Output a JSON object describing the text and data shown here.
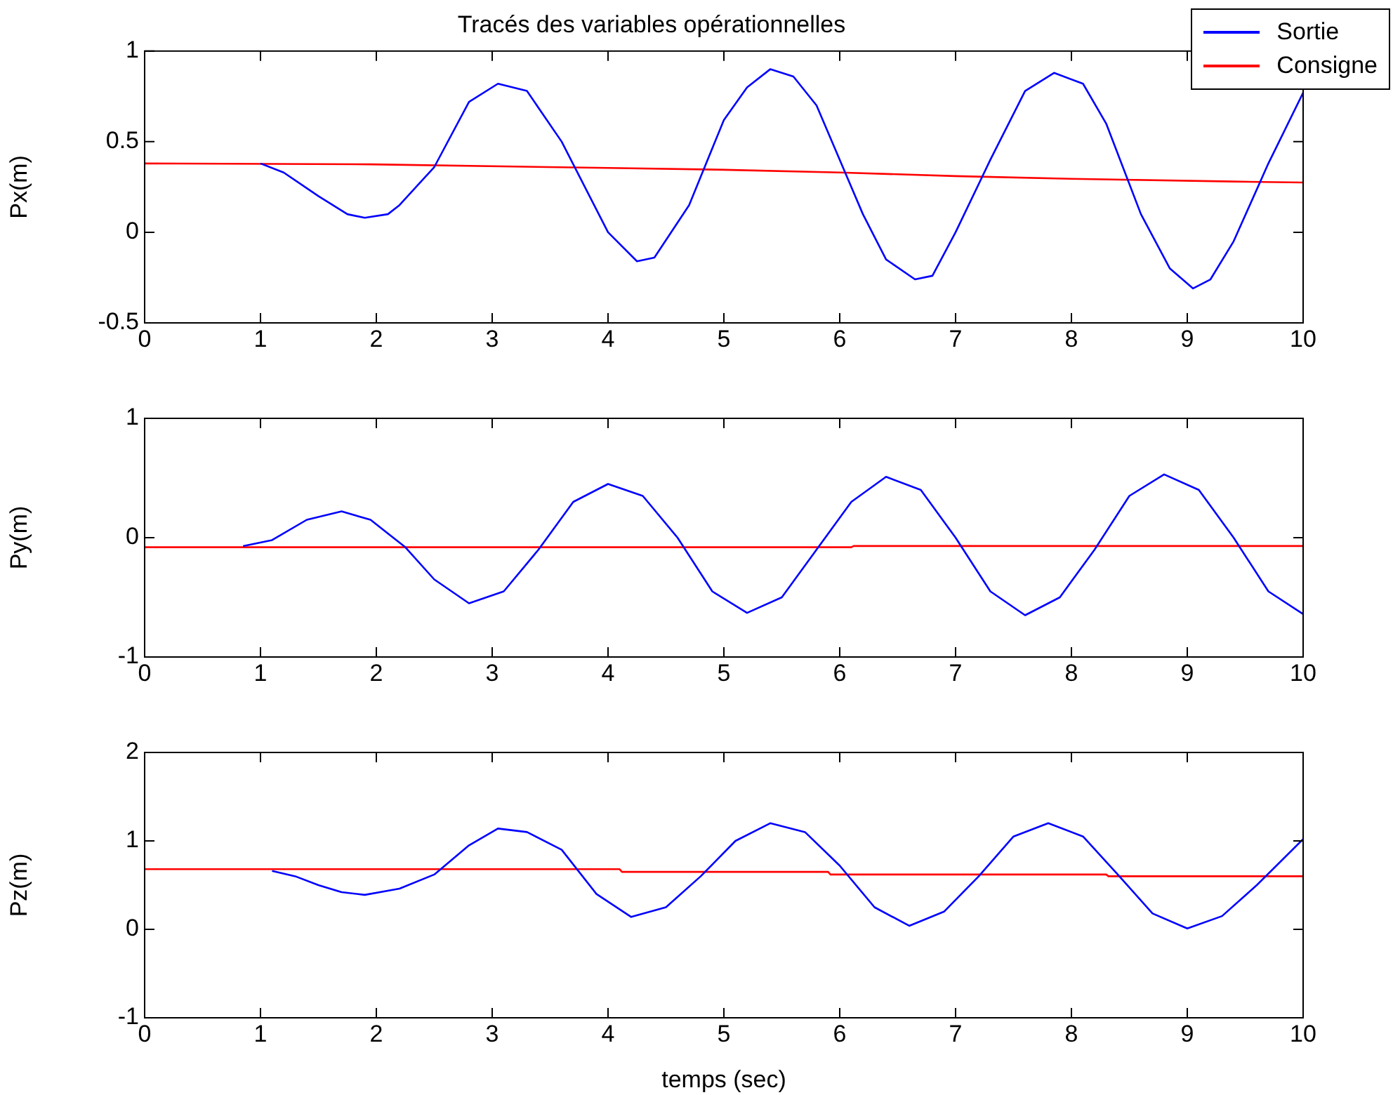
{
  "chart_data": [
    {
      "type": "line",
      "title": "Tracés des variables opérationnelles",
      "ylabel": "Px(m)",
      "xlim": [
        0,
        10
      ],
      "xticks": [
        0,
        1,
        2,
        3,
        4,
        5,
        6,
        7,
        8,
        9,
        10
      ],
      "ylim": [
        -0.5,
        1
      ],
      "yticks": [
        -0.5,
        0,
        0.5,
        1
      ],
      "grid": false,
      "legend": "top right",
      "marker": "none",
      "line_style": "solid",
      "series": [
        {
          "name": "Sortie",
          "color": "#0000ff",
          "x": [
            1,
            1.2,
            1.5,
            1.75,
            1.9,
            2.1,
            2.2,
            2.5,
            2.8,
            3.05,
            3.3,
            3.6,
            4,
            4.25,
            4.4,
            4.7,
            5,
            5.2,
            5.4,
            5.6,
            5.8,
            6.2,
            6.4,
            6.65,
            6.8,
            7,
            7.3,
            7.6,
            7.85,
            8.1,
            8.3,
            8.6,
            8.85,
            9.05,
            9.2,
            9.4,
            9.7,
            10
          ],
          "values": [
            0.38,
            0.33,
            0.2,
            0.1,
            0.08,
            0.1,
            0.15,
            0.36,
            0.72,
            0.82,
            0.78,
            0.5,
            0,
            -0.16,
            -0.14,
            0.15,
            0.62,
            0.8,
            0.9,
            0.86,
            0.7,
            0.1,
            -0.15,
            -0.26,
            -0.24,
            0,
            0.4,
            0.78,
            0.88,
            0.82,
            0.6,
            0.1,
            -0.2,
            -0.31,
            -0.26,
            -0.05,
            0.38,
            0.77
          ]
        },
        {
          "name": "Consigne",
          "color": "#ff0000",
          "x": [
            0,
            1.95,
            4,
            5,
            6,
            7,
            8,
            9.4,
            10
          ],
          "values": [
            0.38,
            0.375,
            0.355,
            0.345,
            0.33,
            0.31,
            0.295,
            0.28,
            0.275
          ]
        }
      ]
    },
    {
      "type": "line",
      "ylabel": "Py(m)",
      "xlim": [
        0,
        10
      ],
      "xticks": [
        0,
        1,
        2,
        3,
        4,
        5,
        6,
        7,
        8,
        9,
        10
      ],
      "ylim": [
        -1,
        1
      ],
      "yticks": [
        -1,
        0,
        1
      ],
      "grid": false,
      "marker": "none",
      "line_style": "solid",
      "series": [
        {
          "color": "#0000ff",
          "x": [
            0.85,
            1.1,
            1.4,
            1.7,
            1.95,
            2.25,
            2.5,
            2.8,
            3.1,
            3.4,
            3.7,
            4,
            4.3,
            4.6,
            4.9,
            5.2,
            5.5,
            5.8,
            6.1,
            6.4,
            6.7,
            7,
            7.3,
            7.6,
            7.9,
            8.2,
            8.5,
            8.8,
            9.1,
            9.4,
            9.7,
            10
          ],
          "values": [
            -0.07,
            -0.02,
            0.15,
            0.22,
            0.15,
            -0.08,
            -0.35,
            -0.55,
            -0.45,
            -0.1,
            0.3,
            0.45,
            0.35,
            0,
            -0.45,
            -0.63,
            -0.5,
            -0.1,
            0.3,
            0.51,
            0.4,
            0,
            -0.45,
            -0.65,
            -0.5,
            -0.1,
            0.35,
            0.53,
            0.4,
            0,
            -0.45,
            -0.64
          ]
        },
        {
          "color": "#ff0000",
          "x": [
            0,
            6.1,
            6.12,
            10
          ],
          "values": [
            -0.08,
            -0.08,
            -0.07,
            -0.07
          ]
        }
      ]
    },
    {
      "type": "line",
      "ylabel": "Pz(m)",
      "xlabel": "temps (sec)",
      "xlim": [
        0,
        10
      ],
      "xticks": [
        0,
        1,
        2,
        3,
        4,
        5,
        6,
        7,
        8,
        9,
        10
      ],
      "ylim": [
        -1,
        2
      ],
      "yticks": [
        -1,
        0,
        1,
        2
      ],
      "grid": false,
      "marker": "none",
      "line_style": "solid",
      "series": [
        {
          "color": "#0000ff",
          "x": [
            1.1,
            1.3,
            1.5,
            1.7,
            1.9,
            2.2,
            2.5,
            2.8,
            3.05,
            3.3,
            3.6,
            3.9,
            4.2,
            4.5,
            4.8,
            5.1,
            5.4,
            5.7,
            6,
            6.3,
            6.6,
            6.9,
            7.2,
            7.5,
            7.8,
            8.1,
            8.4,
            8.7,
            9,
            9.3,
            9.6,
            10
          ],
          "values": [
            0.66,
            0.6,
            0.5,
            0.42,
            0.39,
            0.46,
            0.62,
            0.95,
            1.14,
            1.1,
            0.9,
            0.4,
            0.14,
            0.25,
            0.6,
            1,
            1.2,
            1.1,
            0.72,
            0.25,
            0.04,
            0.2,
            0.6,
            1.05,
            1.2,
            1.05,
            0.62,
            0.18,
            0.01,
            0.15,
            0.5,
            1.02
          ]
        },
        {
          "color": "#ff0000",
          "x": [
            0,
            4.1,
            4.12,
            5.9,
            5.92,
            8.3,
            8.32,
            10
          ],
          "values": [
            0.68,
            0.68,
            0.65,
            0.65,
            0.62,
            0.62,
            0.6,
            0.6
          ]
        }
      ]
    }
  ]
}
